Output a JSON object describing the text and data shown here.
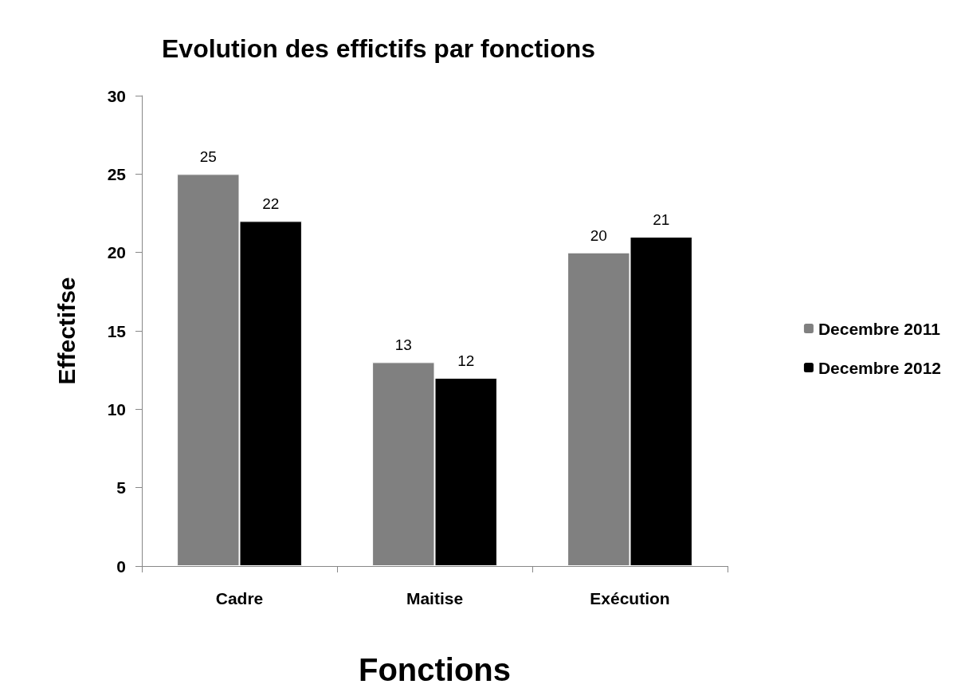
{
  "chart_data": {
    "type": "bar",
    "title": "Evolution des effictifs par fonctions",
    "xlabel": "Fonctions",
    "ylabel": "Effectifse",
    "categories": [
      "Cadre",
      "Maitise",
      "Exécution"
    ],
    "series": [
      {
        "name": "Decembre 2011",
        "color": "#808080",
        "values": [
          25,
          13,
          20
        ]
      },
      {
        "name": "Decembre 2012",
        "color": "#000000",
        "values": [
          22,
          12,
          21
        ]
      }
    ],
    "ylim": [
      0,
      30
    ],
    "yticks": [
      0,
      5,
      10,
      15,
      20,
      25,
      30
    ],
    "grid": false,
    "legend": "right",
    "data_labels": true
  }
}
